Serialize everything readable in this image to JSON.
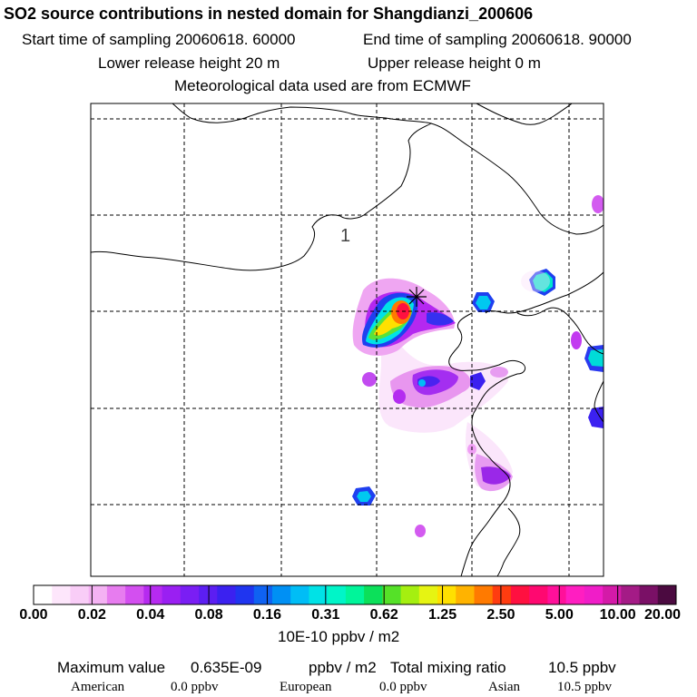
{
  "header": {
    "title": "SO2 source contributions in nested domain for Shangdianzi_200606",
    "start_text": "Start time of sampling 20060618. 60000",
    "end_text": "End time of sampling 20060618. 90000",
    "lower_text": "Lower release height   20 m",
    "upper_text": "Upper release height    0 m",
    "met_text": "Meteorological data used are from ECMWF"
  },
  "map": {
    "contour_label": "1"
  },
  "chart_data": {
    "type": "heatmap",
    "title": "SO2 source contributions in nested domain for Shangdianzi_200606",
    "colorbar_ticks": [
      "0.00",
      "0.02",
      "0.04",
      "0.08",
      "0.16",
      "0.31",
      "0.62",
      "1.25",
      "2.50",
      "5.00",
      "10.00",
      "20.00"
    ],
    "colorbar_colors": [
      "#ffffff",
      "#fde6fb",
      "#f9cdf7",
      "#f4b2f3",
      "#e77cef",
      "#d34ff0",
      "#b62af0",
      "#9a1ff2",
      "#7a1ef4",
      "#5c1ef2",
      "#3b21f0",
      "#1f35f0",
      "#0f62f2",
      "#0090f4",
      "#00bdf6",
      "#00e2e6",
      "#00f5c8",
      "#00f59a",
      "#0ce05a",
      "#55e128",
      "#a5ef10",
      "#e6f412",
      "#ffe000",
      "#ffb300",
      "#ff7a00",
      "#ff3c10",
      "#ff1040",
      "#ff0870",
      "#ff109a",
      "#ff1ec1",
      "#f01dc8",
      "#d41aa8",
      "#a41b86",
      "#7a1066",
      "#4b0a40"
    ],
    "units": "10E-10 ppbv / m2",
    "max_label": "Maximum value",
    "max_value": "0.635E-09",
    "max_unit": "ppbv / m2",
    "total_label": "Total mixing ratio",
    "total_value": "10.5 ppbv",
    "regions": [
      {
        "name": "American",
        "value": "0.0 ppbv"
      },
      {
        "name": "European",
        "value": "0.0 ppbv"
      },
      {
        "name": "Asian",
        "value": "10.5 ppbv"
      }
    ]
  }
}
